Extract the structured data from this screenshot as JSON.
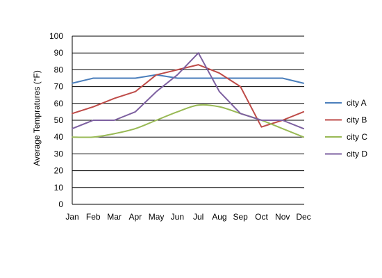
{
  "chart_data": {
    "type": "line",
    "title": "",
    "xlabel": "",
    "ylabel": "Average Tempratures (°F)",
    "categories": [
      "Jan",
      "Feb",
      "Mar",
      "Apr",
      "May",
      "Jun",
      "Jul",
      "Aug",
      "Sep",
      "Oct",
      "Nov",
      "Dec"
    ],
    "ylim": [
      0,
      100
    ],
    "yticks": [
      0,
      10,
      20,
      30,
      40,
      50,
      60,
      70,
      80,
      90,
      100
    ],
    "grid": true,
    "legend_position": "right",
    "series": [
      {
        "name": "city A",
        "color": "#4a7ebb",
        "smooth": false,
        "values": [
          72,
          75,
          75,
          75,
          77,
          75,
          75,
          75,
          75,
          75,
          75,
          72
        ]
      },
      {
        "name": "city B",
        "color": "#be4b48",
        "smooth": false,
        "values": [
          54,
          58,
          63,
          67,
          77,
          80,
          83,
          78,
          70,
          46,
          50,
          55
        ]
      },
      {
        "name": "city C",
        "color": "#98b954",
        "smooth": true,
        "values": [
          40,
          40,
          42,
          45,
          50,
          55,
          59,
          58,
          54,
          50,
          45,
          40
        ]
      },
      {
        "name": "city D",
        "color": "#7d60a0",
        "smooth": false,
        "values": [
          45,
          50,
          50,
          55,
          67,
          77,
          90,
          67,
          54,
          50,
          50,
          45
        ]
      }
    ]
  }
}
